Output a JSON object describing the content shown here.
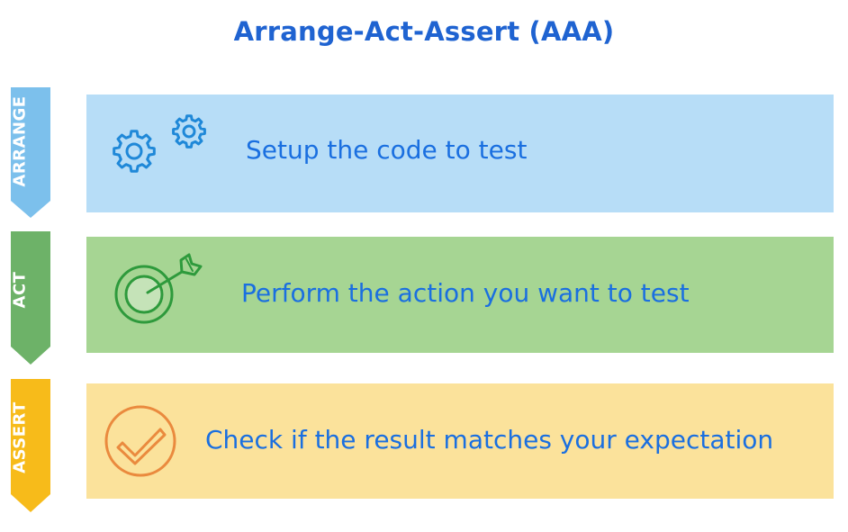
{
  "title": "Arrange-Act-Assert (AAA)",
  "colors": {
    "title_text": "#1f63d1",
    "body_text": "#1a6fe0"
  },
  "stages": [
    {
      "label": "ARRANGE",
      "description": "Setup the code to test",
      "icon": "gears-icon",
      "ribbon_color": "#7cc0ec",
      "panel_color": "#b7ddf7",
      "icon_color": "#1f88d8"
    },
    {
      "label": "ACT",
      "description": "Perform the action you want to test",
      "icon": "target-arrow-icon",
      "ribbon_color": "#6db268",
      "panel_color": "#a6d593",
      "icon_color": "#2e9a3c"
    },
    {
      "label": "ASSERT",
      "description": "Check if the result matches your expectation",
      "icon": "checkmark-circle-icon",
      "ribbon_color": "#f7bb1a",
      "panel_color": "#fbe29b",
      "icon_color": "#ea8a3e"
    }
  ]
}
